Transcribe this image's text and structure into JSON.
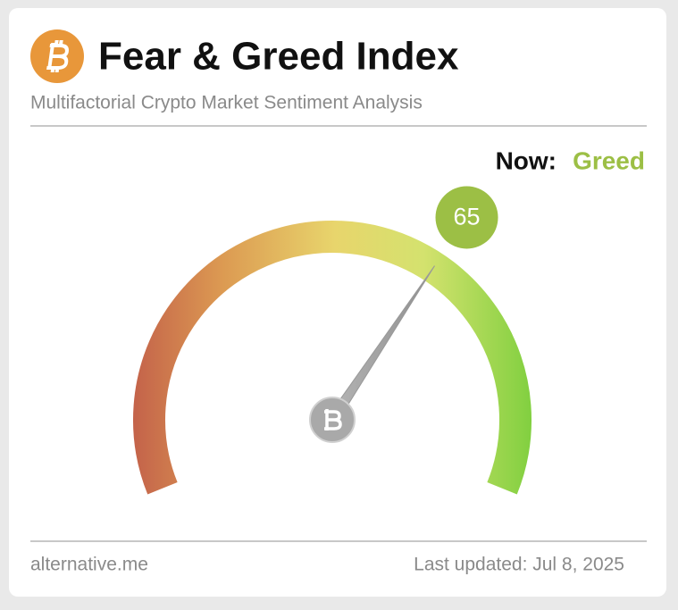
{
  "chart_data": {
    "type": "gauge",
    "title": "Fear & Greed Index",
    "subtitle": "Multifactorial Crypto Market Sentiment Analysis",
    "now_label": "Now:",
    "classification": "Greed",
    "value": 65,
    "range": [
      0,
      100
    ],
    "color": "#9cbf45",
    "source": "alternative.me",
    "updated": "Last updated: Jul 8, 2025"
  }
}
